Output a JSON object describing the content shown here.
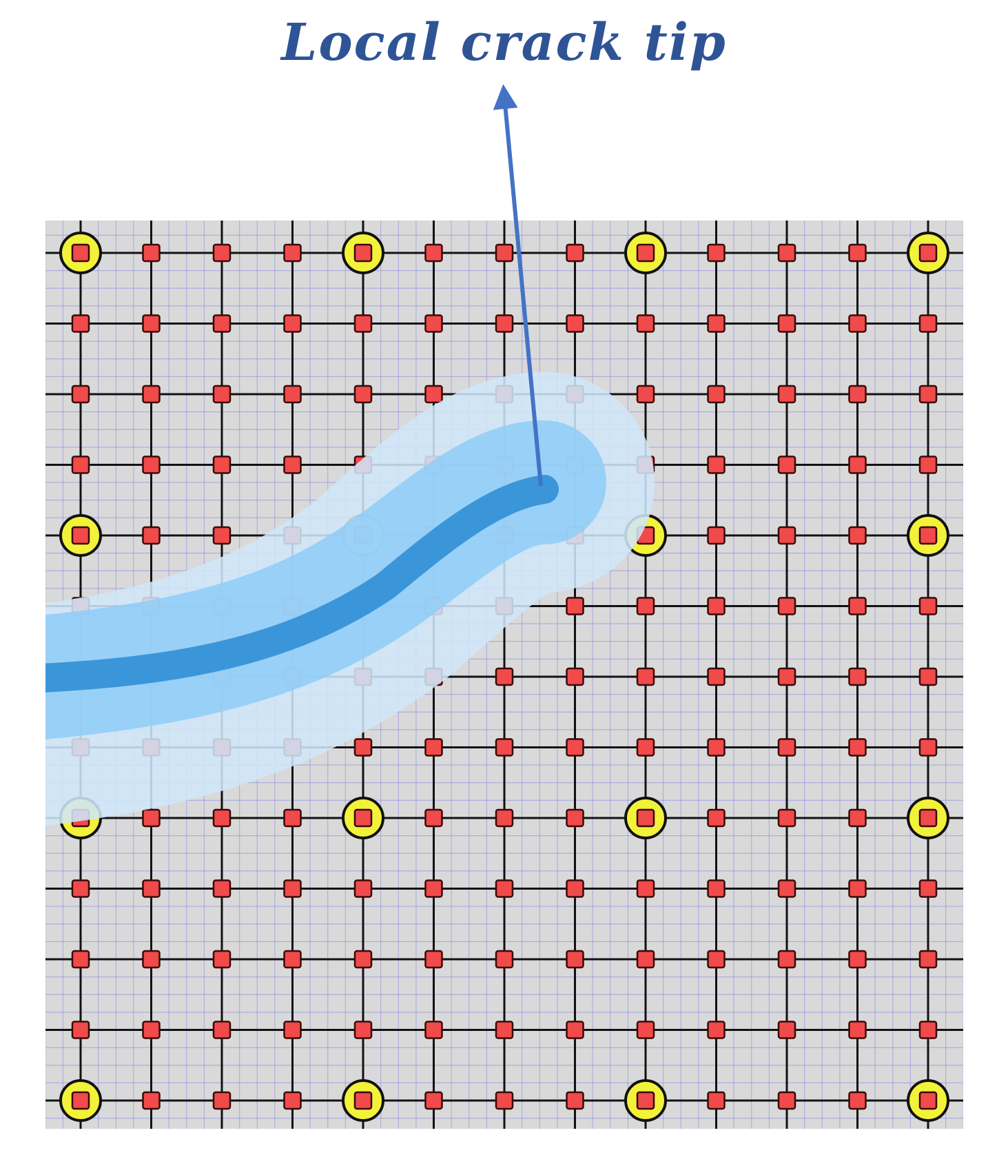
{
  "title": "Local crack tip",
  "colors": {
    "background": "#d9d9d9",
    "fine_grid": "#8a8ae6",
    "coarse_grid": "#111111",
    "node_fill": "#f04a4a",
    "node_stroke": "#3a0a0a",
    "enriched_node_ring": "#f2f23a",
    "crack_core": "#3b95d9",
    "crack_mid": "#8fcdf7",
    "crack_outer": "#cfe6f8",
    "title": "#2f5496",
    "arrow": "#4472c4"
  },
  "icons": {
    "grid_node": "red-square-node",
    "enriched_node": "yellow-ring-node",
    "pointer": "arrow-icon"
  }
}
